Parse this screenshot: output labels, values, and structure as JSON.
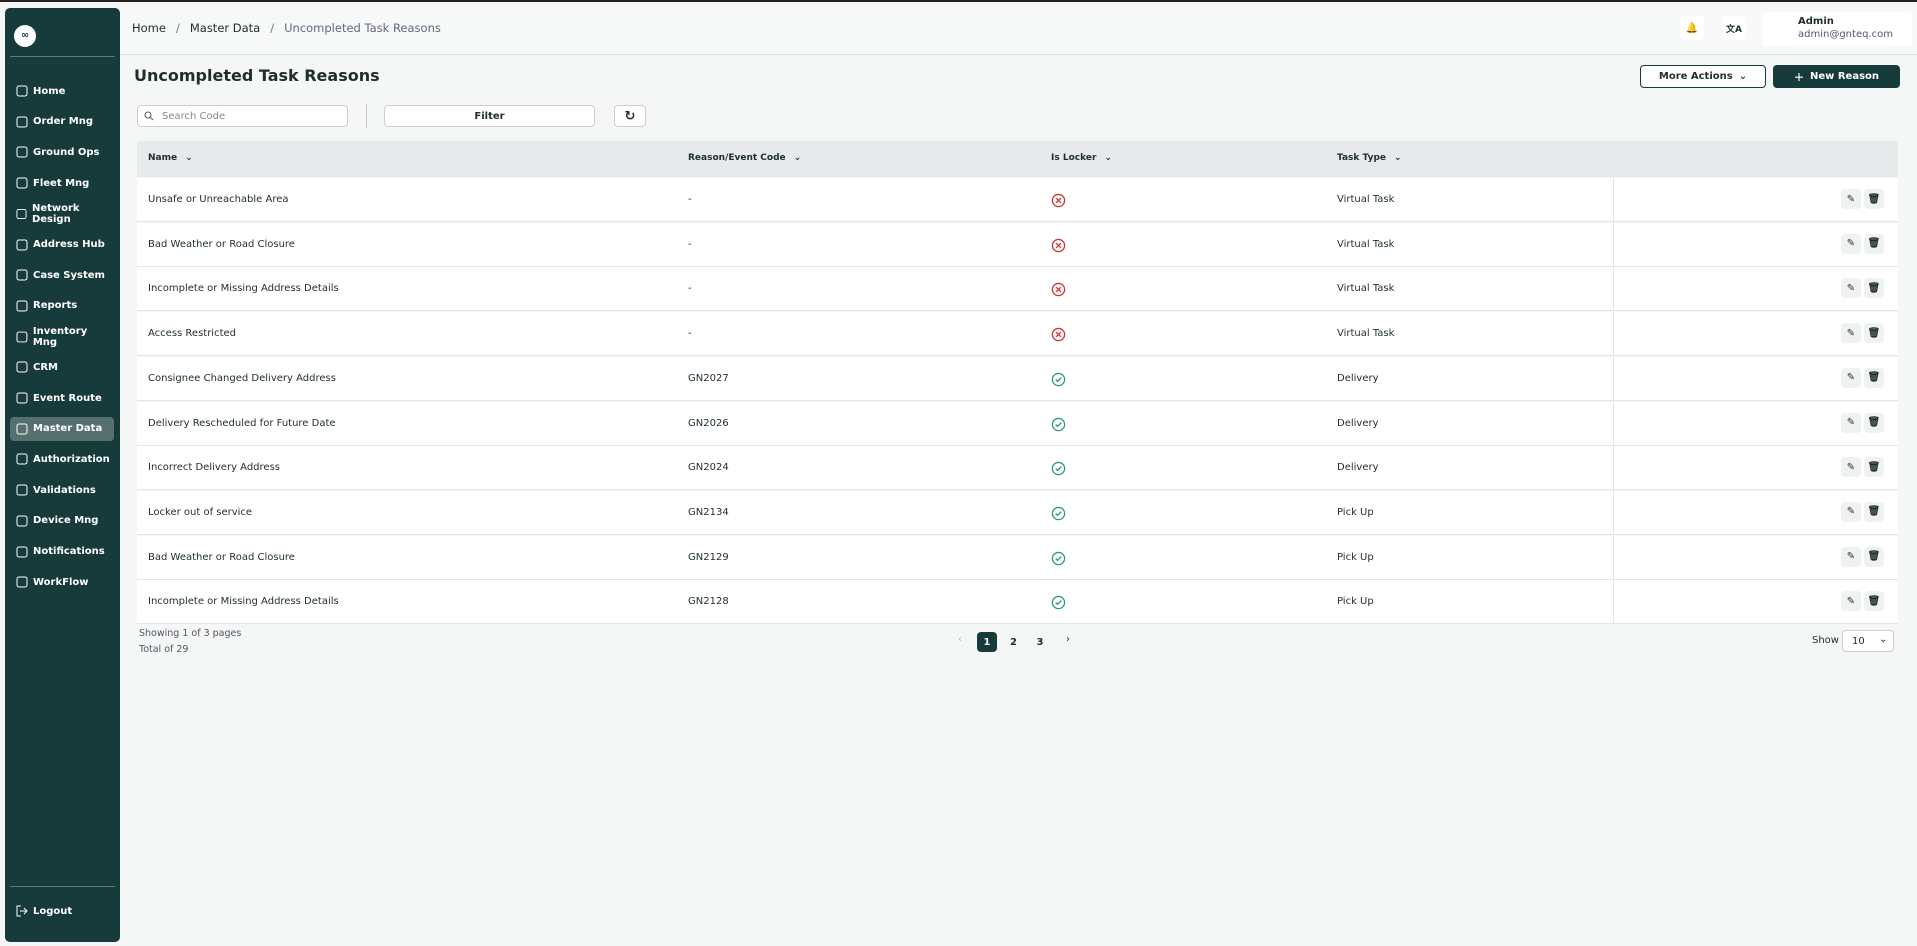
{
  "sidebar": {
    "items": [
      "Home",
      "Order Mng",
      "Ground Ops",
      "Fleet Mng",
      "Network Design",
      "Address Hub",
      "Case System",
      "Reports",
      "Inventory Mng",
      "CRM",
      "Event Route",
      "Master Data",
      "Authorization",
      "Validations",
      "Device Mng",
      "Notifications",
      "WorkFlow"
    ],
    "active": 11,
    "logout": "Logout"
  },
  "header": {
    "breadcrumb": [
      "Home",
      "Master Data",
      "Uncompleted Task Reasons"
    ],
    "user": {
      "name": "Admin",
      "email": "admin@gnteq.com"
    }
  },
  "page": {
    "title": "Uncompleted Task Reasons",
    "actions": [
      "More Actions",
      "New Reason"
    ],
    "search_placeholder": "Search Code",
    "filter": "Filter"
  },
  "table": {
    "columns": [
      "Name",
      "Reason/Event Code",
      "Is Locker",
      "Task Type"
    ],
    "rows": [
      {
        "name": "Unsafe or Unreachable Area",
        "code": "-",
        "is_locker": false,
        "task_type": "Virtual Task"
      },
      {
        "name": "Bad Weather or Road Closure",
        "code": "-",
        "is_locker": false,
        "task_type": "Virtual Task"
      },
      {
        "name": "Incomplete or Missing Address Details",
        "code": "-",
        "is_locker": false,
        "task_type": "Virtual Task"
      },
      {
        "name": "Access Restricted",
        "code": "-",
        "is_locker": false,
        "task_type": "Virtual Task"
      },
      {
        "name": "Consignee Changed Delivery Address",
        "code": "GN2027",
        "is_locker": true,
        "task_type": "Delivery"
      },
      {
        "name": "Delivery Rescheduled for Future Date",
        "code": "GN2026",
        "is_locker": true,
        "task_type": "Delivery"
      },
      {
        "name": "Incorrect Delivery Address",
        "code": "GN2024",
        "is_locker": true,
        "task_type": "Delivery"
      },
      {
        "name": "Locker out of service",
        "code": "GN2134",
        "is_locker": true,
        "task_type": "Pick Up"
      },
      {
        "name": "Bad Weather or Road Closure",
        "code": "GN2129",
        "is_locker": true,
        "task_type": "Pick Up"
      },
      {
        "name": "Incomplete or Missing Address Details",
        "code": "GN2128",
        "is_locker": true,
        "task_type": "Pick Up"
      }
    ]
  },
  "pagination": {
    "showing": "Showing 1 of 3 pages",
    "total": "Total of 29",
    "pages": [
      "1",
      "2",
      "3"
    ],
    "current": 0,
    "show_label": "Show",
    "page_size": "10"
  }
}
